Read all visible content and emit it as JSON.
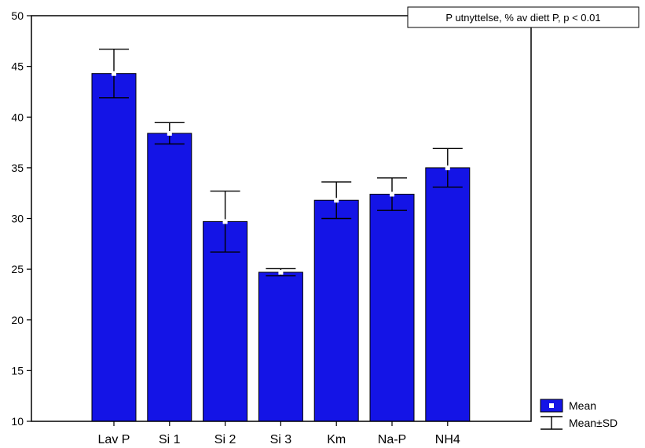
{
  "chart_data": {
    "type": "bar",
    "title": "P utnyttelse, % av diett P, p < 0.01",
    "xlabel": "",
    "ylabel": "",
    "categories": [
      "Lav P",
      "Si 1",
      "Si 2",
      "Si 3",
      "Km",
      "Na-P",
      "NH4"
    ],
    "series": [
      {
        "name": "Mean",
        "values": [
          44.3,
          38.4,
          29.7,
          24.7,
          31.8,
          32.4,
          35.0
        ],
        "sd": [
          2.4,
          1.05,
          3.0,
          0.35,
          1.8,
          1.6,
          1.9
        ]
      }
    ],
    "ylim": [
      10,
      50
    ],
    "yticks": [
      10,
      15,
      20,
      25,
      30,
      35,
      40,
      45,
      50
    ],
    "grid": false,
    "bar_color": "#1414e6",
    "legend": {
      "placement": "bottom-right-outside",
      "mean_label": "Mean",
      "sd_label": "Mean±SD"
    }
  }
}
